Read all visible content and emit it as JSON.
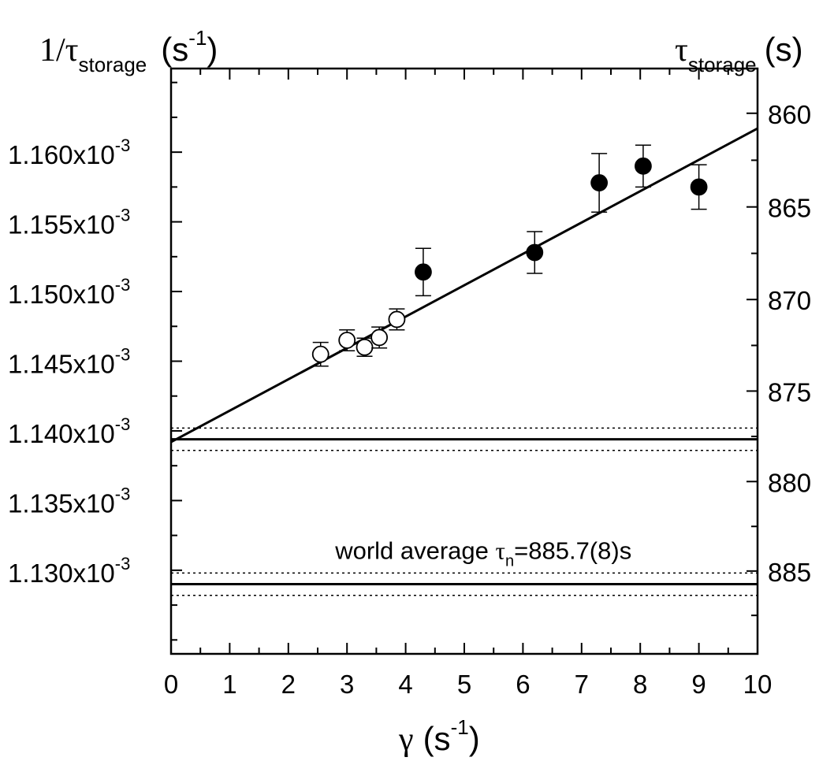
{
  "chart_data": {
    "type": "scatter",
    "title": "",
    "xlabel": {
      "symbol": "γ",
      "text": "(s",
      "sup": "-1",
      "close": ")"
    },
    "ylabel_left": {
      "main": "1/τ",
      "sub": "storage",
      "unit_open": "(s",
      "unit_sup": "-1",
      "unit_close": ")"
    },
    "ylabel_right": {
      "main": "τ",
      "sub": "storage",
      "unit": "(s)"
    },
    "xlim": [
      0,
      10
    ],
    "ylim": [
      0.001124,
      0.001166
    ],
    "x_ticks": [
      0,
      1,
      2,
      3,
      4,
      5,
      6,
      7,
      8,
      9,
      10
    ],
    "y_ticks_left": [
      {
        "value": 0.00113,
        "mantissa": "1.130x10",
        "exp": "-3"
      },
      {
        "value": 0.001135,
        "mantissa": "1.135x10",
        "exp": "-3"
      },
      {
        "value": 0.00114,
        "mantissa": "1.140x10",
        "exp": "-3"
      },
      {
        "value": 0.001145,
        "mantissa": "1.145x10",
        "exp": "-3"
      },
      {
        "value": 0.00115,
        "mantissa": "1.150x10",
        "exp": "-3"
      },
      {
        "value": 0.001155,
        "mantissa": "1.155x10",
        "exp": "-3"
      },
      {
        "value": 0.00116,
        "mantissa": "1.160x10",
        "exp": "-3"
      }
    ],
    "y_ticks_right": [
      860,
      865,
      870,
      875,
      880,
      885
    ],
    "series": [
      {
        "marker": "open-circle",
        "points": [
          {
            "x": 2.55,
            "y": 0.0011455,
            "err": 8.5e-07
          },
          {
            "x": 3.0,
            "y": 0.0011465,
            "err": 7.5e-07
          },
          {
            "x": 3.3,
            "y": 0.001146,
            "err": 6.5e-07
          },
          {
            "x": 3.55,
            "y": 0.0011467,
            "err": 7.5e-07
          },
          {
            "x": 3.85,
            "y": 0.001148,
            "err": 7.5e-07
          }
        ]
      },
      {
        "marker": "filled-circle",
        "points": [
          {
            "x": 4.3,
            "y": 0.0011514,
            "err": 1.7e-06
          },
          {
            "x": 6.2,
            "y": 0.0011528,
            "err": 1.5e-06
          },
          {
            "x": 7.3,
            "y": 0.0011578,
            "err": 2.1e-06
          },
          {
            "x": 8.05,
            "y": 0.001159,
            "err": 1.5e-06
          },
          {
            "x": 9.0,
            "y": 0.0011575,
            "err": 1.6e-06
          }
        ]
      }
    ],
    "fit_line": {
      "x": [
        0,
        10
      ],
      "y": [
        0.0011392,
        0.0011617
      ]
    },
    "bands": [
      {
        "center": 0.0011394,
        "lower": 0.0011386,
        "upper": 0.0011402
      },
      {
        "center": 0.001129,
        "lower": 0.0011282,
        "upper": 0.0011298
      }
    ],
    "annotation": {
      "before": "world average ",
      "tau": "τ",
      "sub": "n",
      "after": "=885.7(8)s",
      "x": 4.25,
      "y": 0.0011315
    }
  }
}
